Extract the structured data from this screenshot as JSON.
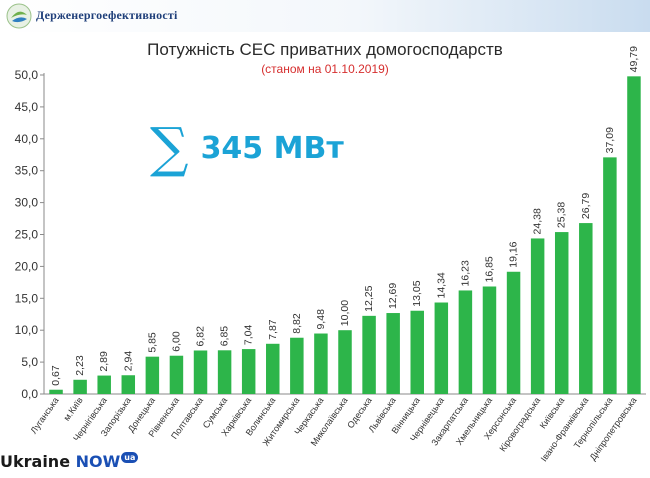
{
  "header": {
    "brand": "Держенергоефективності"
  },
  "title": "Потужність СЕС приватних домогосподарств",
  "subtitle": "(станом на 01.10.2019)",
  "total": {
    "symbol": "∑",
    "value": "345 МВт"
  },
  "watermark": {
    "part1": "Ukraine ",
    "part2": "NOW",
    "badge": "ua"
  },
  "colors": {
    "bar": "#2db54a",
    "title_accent": "#1ba3d6",
    "subtitle": "#d62e2e"
  },
  "chart_data": {
    "type": "bar",
    "title": "Потужність СЕС приватних домогосподарств",
    "subtitle": "(станом на 01.10.2019)",
    "xlabel": "",
    "ylabel": "",
    "ylim": [
      0,
      50
    ],
    "yticks": [
      "0,0",
      "5,0",
      "10,0",
      "15,0",
      "20,0",
      "25,0",
      "30,0",
      "35,0",
      "40,0",
      "45,0",
      "50,0"
    ],
    "grid": false,
    "legend": "none",
    "categories": [
      "Луганська",
      "м.Київ",
      "Чернігівська",
      "Запорізька",
      "Донецька",
      "Рівненська",
      "Полтавська",
      "Сумська",
      "Харківська",
      "Волинська",
      "Житомирська",
      "Черкаська",
      "Миколаївська",
      "Одеська",
      "Львівська",
      "Вінницька",
      "Чернівецька",
      "Закарпатська",
      "Хмельницька",
      "Херсонська",
      "Кіровоградська",
      "Київська",
      "Івано-Франківська",
      "Тернопільська",
      "Дніпропетровська"
    ],
    "values": [
      0.67,
      2.23,
      2.89,
      2.94,
      5.85,
      6.0,
      6.82,
      6.85,
      7.04,
      7.87,
      8.82,
      9.48,
      10.0,
      12.25,
      12.69,
      13.05,
      14.34,
      16.23,
      16.85,
      19.16,
      24.38,
      25.38,
      26.79,
      37.09,
      49.79
    ],
    "value_labels": [
      "0,67",
      "2,23",
      "2,89",
      "2,94",
      "5,85",
      "6,00",
      "6,82",
      "6,85",
      "7,04",
      "7,87",
      "8,82",
      "9,48",
      "10,00",
      "12,25",
      "12,69",
      "13,05",
      "14,34",
      "16,23",
      "16,85",
      "19,16",
      "24,38",
      "25,38",
      "26,79",
      "37,09",
      "49,79"
    ]
  }
}
